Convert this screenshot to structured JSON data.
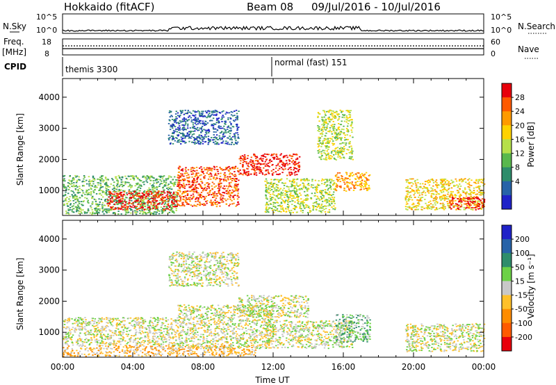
{
  "header": {
    "station": "Hokkaido (fitACF)",
    "beam": "Beam 08",
    "date_range": "09/Jul/2016 - 10/Jul/2016"
  },
  "ancillary": {
    "nsky_label": "N.Sky",
    "nsky_ticks": [
      "10^5",
      "10^0"
    ],
    "nsearch_label": "N.Search",
    "nsearch_ticks": [
      "10^5",
      "10^0"
    ],
    "freq_label": "Freq.",
    "freq_unit": "[MHz]",
    "freq_ticks": [
      "18",
      "8"
    ],
    "nave_label": "Nave",
    "nave_ticks": [
      "60",
      "0"
    ],
    "cpid_label": "CPID",
    "cpid_segments": [
      {
        "label": "themis 3300",
        "start_hour": 0
      },
      {
        "label": "normal (fast) 151",
        "start_hour": 12
      }
    ]
  },
  "chart_data": [
    {
      "type": "heatmap",
      "panel": "power",
      "ylabel": "Slant Range [km]",
      "yticks": [
        1000,
        2000,
        3000,
        4000
      ],
      "ylim": [
        200,
        4600
      ],
      "xlim": [
        0,
        24
      ],
      "colorbar": {
        "label": "Power [dB]",
        "ticks": [
          "28",
          "24",
          "20",
          "16",
          "12",
          "8",
          "4"
        ],
        "colors": [
          "#e8000b",
          "#ff5a00",
          "#ff9a00",
          "#ffd200",
          "#b6e04a",
          "#59b84d",
          "#2e8d6b",
          "#2763a8",
          "#1f22c8"
        ]
      },
      "scatter_regions": [
        {
          "h0": 0.0,
          "h1": 6.5,
          "r0": 250,
          "r1": 1500,
          "level": 3
        },
        {
          "h0": 2.5,
          "h1": 6.5,
          "r0": 400,
          "r1": 1000,
          "level": 8
        },
        {
          "h0": 6.5,
          "h1": 10.0,
          "r0": 500,
          "r1": 1800,
          "level": 7
        },
        {
          "h0": 10.0,
          "h1": 13.5,
          "r0": 1500,
          "r1": 2200,
          "level": 8
        },
        {
          "h0": 6.0,
          "h1": 10.0,
          "r0": 2500,
          "r1": 3600,
          "level": 1
        },
        {
          "h0": 11.5,
          "h1": 15.5,
          "r0": 300,
          "r1": 1400,
          "level": 4
        },
        {
          "h0": 14.5,
          "h1": 16.5,
          "r0": 2000,
          "r1": 3600,
          "level": 4
        },
        {
          "h0": 15.5,
          "h1": 17.5,
          "r0": 1000,
          "r1": 1600,
          "level": 6
        },
        {
          "h0": 19.5,
          "h1": 24.0,
          "r0": 400,
          "r1": 1400,
          "level": 5
        },
        {
          "h0": 22.0,
          "h1": 24.0,
          "r0": 400,
          "r1": 800,
          "level": 8
        }
      ]
    },
    {
      "type": "heatmap",
      "panel": "velocity",
      "ylabel": "Slant Range [km]",
      "yticks": [
        1000,
        2000,
        3000,
        4000
      ],
      "ylim": [
        200,
        4600
      ],
      "xlim": [
        0,
        24
      ],
      "xlabel": "Time UT",
      "xticks": [
        "00:00",
        "04:00",
        "08:00",
        "12:00",
        "16:00",
        "20:00",
        "00:00"
      ],
      "colorbar": {
        "label": "Velocity [m s⁻¹]",
        "ticks": [
          "200",
          "100",
          "50",
          "15",
          "-15",
          "-50",
          "-100",
          "-200"
        ],
        "colors": [
          "#1f22c8",
          "#2763a8",
          "#2e8d6b",
          "#6cd146",
          "#c8c8c8",
          "#ffc02a",
          "#ff8c00",
          "#ff5a00",
          "#e8000b"
        ]
      },
      "scatter_regions": [
        {
          "h0": 0.0,
          "h1": 6.5,
          "r0": 600,
          "r1": 1500,
          "level": 4
        },
        {
          "h0": 6.5,
          "h1": 12.0,
          "r0": 500,
          "r1": 1900,
          "level": 4
        },
        {
          "h0": 10.0,
          "h1": 14.0,
          "r0": 1500,
          "r1": 2200,
          "level": 4
        },
        {
          "h0": 0.0,
          "h1": 11.0,
          "r0": 250,
          "r1": 600,
          "level": 3
        },
        {
          "h0": 11.5,
          "h1": 16.5,
          "r0": 500,
          "r1": 1400,
          "level": 4
        },
        {
          "h0": 15.5,
          "h1": 17.5,
          "r0": 700,
          "r1": 1600,
          "level": 5
        },
        {
          "h0": 19.5,
          "h1": 24.0,
          "r0": 400,
          "r1": 1300,
          "level": 4
        },
        {
          "h0": 6.0,
          "h1": 10.0,
          "r0": 2500,
          "r1": 3600,
          "level": 4
        }
      ]
    }
  ]
}
